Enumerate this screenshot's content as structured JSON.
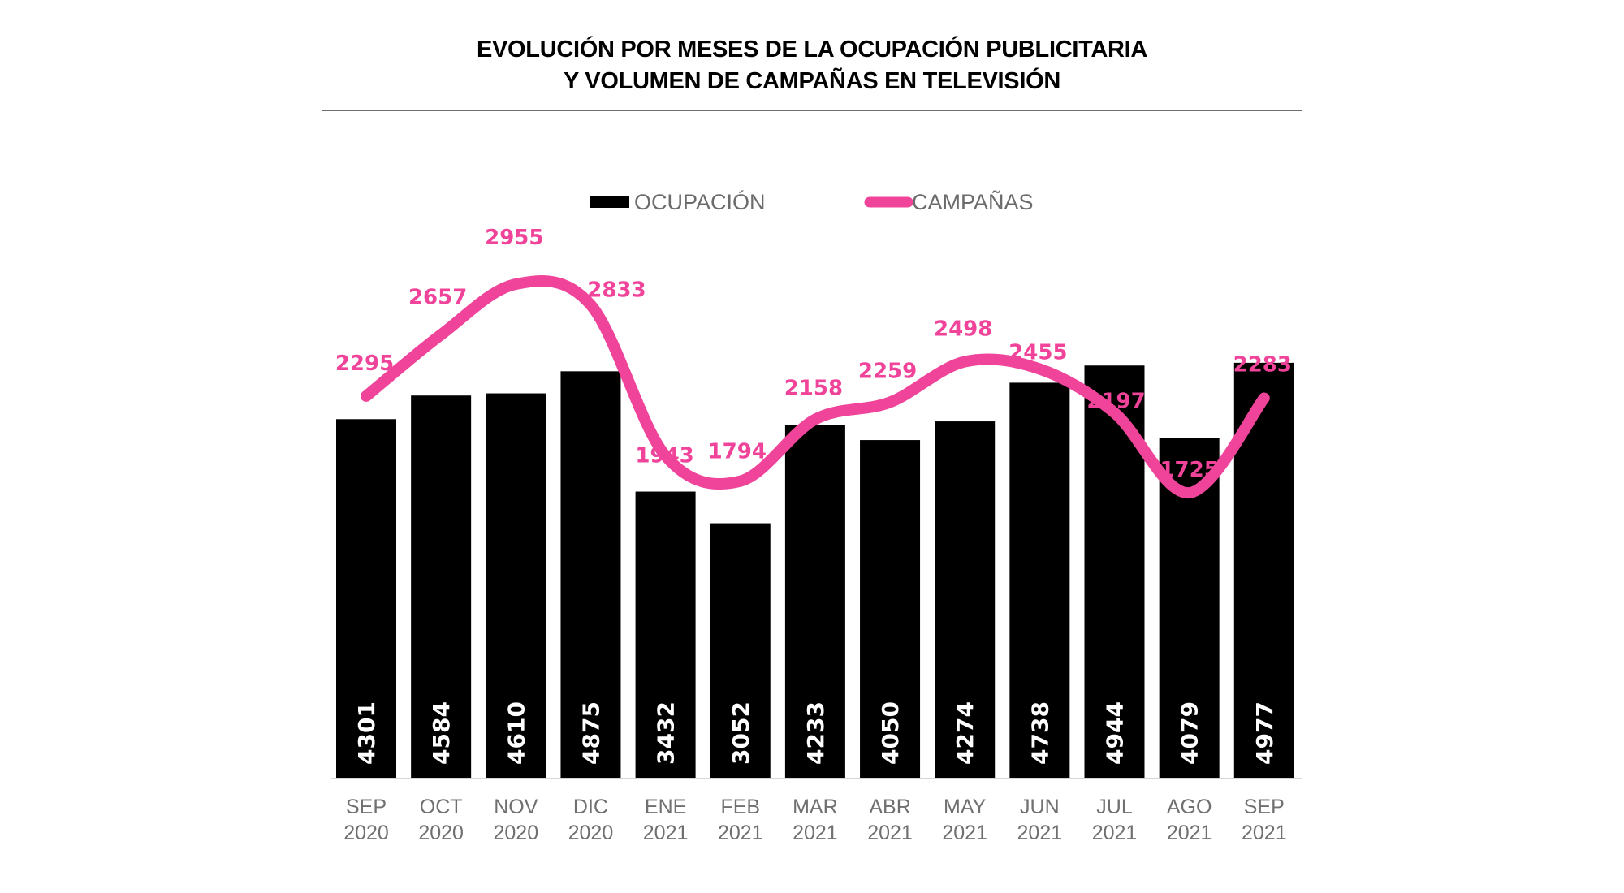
{
  "title": {
    "line1": "EVOLUCIÓN POR MESES DE LA OCUPACIÓN PUBLICITARIA",
    "line2": "Y VOLUMEN DE CAMPAÑAS EN TELEVISIÓN"
  },
  "colors": {
    "bar": "#000000",
    "line": "#f0449a",
    "axis_text": "#707070",
    "legend_text": "#6b6b6b"
  },
  "chart_data": {
    "type": "bar",
    "title": "EVOLUCIÓN POR MESES DE LA OCUPACIÓN PUBLICITARIA Y VOLUMEN DE CAMPAÑAS EN TELEVISIÓN",
    "xlabel": "",
    "ylabel": "",
    "grid": false,
    "legend_position": "top-center",
    "categories": [
      [
        "SEP",
        "2020"
      ],
      [
        "OCT",
        "2020"
      ],
      [
        "NOV",
        "2020"
      ],
      [
        "DIC",
        "2020"
      ],
      [
        "ENE",
        "2021"
      ],
      [
        "FEB",
        "2021"
      ],
      [
        "MAR",
        "2021"
      ],
      [
        "ABR",
        "2021"
      ],
      [
        "MAY",
        "2021"
      ],
      [
        "JUN",
        "2021"
      ],
      [
        "JUL",
        "2021"
      ],
      [
        "AGO",
        "2021"
      ],
      [
        "SEP",
        "2021"
      ]
    ],
    "series": [
      {
        "name": "OCUPACIÓN",
        "type": "bar",
        "color": "#000000",
        "values": [
          4301,
          4584,
          4610,
          4875,
          3432,
          3052,
          4233,
          4050,
          4274,
          4738,
          4944,
          4079,
          4977
        ],
        "ylim": [
          0,
          5000
        ]
      },
      {
        "name": "CAMPAÑAS",
        "type": "line",
        "smooth": true,
        "color": "#f0449a",
        "values": [
          2295,
          2657,
          2955,
          2833,
          1943,
          1794,
          2158,
          2259,
          2498,
          2455,
          2197,
          1725,
          2283
        ],
        "ylim": [
          1725,
          2955
        ]
      }
    ]
  }
}
